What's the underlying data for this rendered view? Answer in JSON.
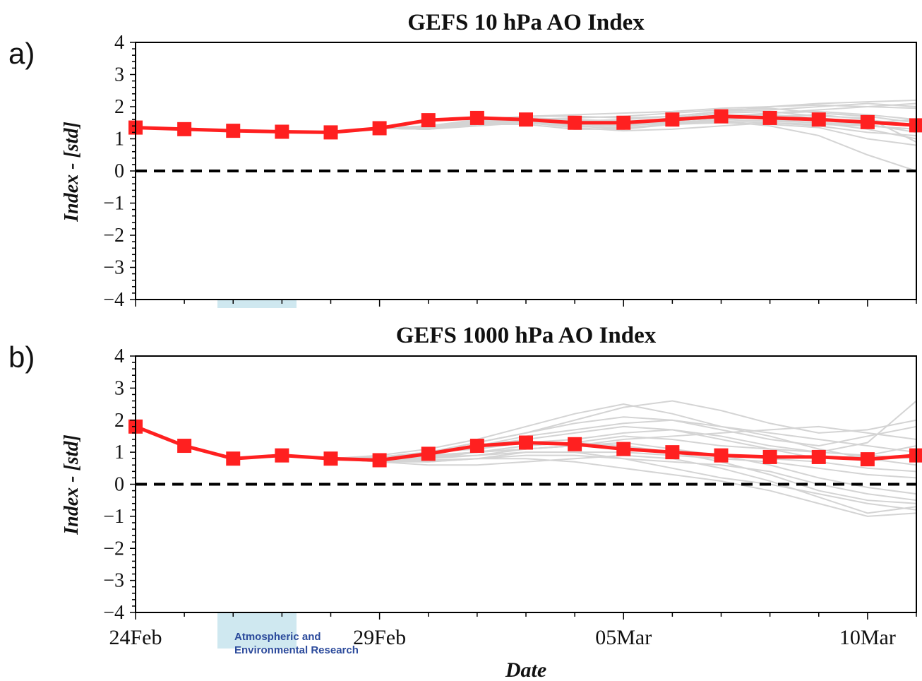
{
  "chart_data": [
    {
      "type": "line",
      "panel_label": "a)",
      "title": "GEFS 10 hPa AO Index",
      "ylabel": "Index - [std]",
      "xlabel": "",
      "ylim": [
        -4,
        4
      ],
      "yticks": [
        4,
        3,
        2,
        1,
        0,
        -1,
        -2,
        -3,
        -4
      ],
      "x_range_days": [
        0,
        16
      ],
      "zero_line": "dashed black",
      "grid": false,
      "legend": "none",
      "colors": {
        "mean": "#ff2020",
        "members": "#d4d4d4",
        "zero": "#000000"
      },
      "series": [
        {
          "role": "ensemble-mean",
          "x": [
            "24Feb",
            "25Feb",
            "26Feb",
            "27Feb",
            "28Feb",
            "29Feb",
            "01Mar",
            "02Mar",
            "03Mar",
            "04Mar",
            "05Mar",
            "06Mar",
            "07Mar",
            "08Mar",
            "09Mar",
            "10Mar",
            "11Mar"
          ],
          "values": [
            1.35,
            1.3,
            1.25,
            1.22,
            1.2,
            1.33,
            1.58,
            1.65,
            1.6,
            1.5,
            1.5,
            1.6,
            1.7,
            1.65,
            1.6,
            1.52,
            1.42
          ]
        }
      ],
      "members_start_day": 6,
      "members": [
        [
          1.4,
          1.5,
          1.55,
          1.45,
          1.4,
          1.5,
          1.6,
          1.8,
          1.9,
          2.0,
          2.1
        ],
        [
          1.3,
          1.45,
          1.6,
          1.55,
          1.6,
          1.7,
          1.85,
          2.0,
          2.1,
          2.15,
          2.2
        ],
        [
          1.35,
          1.5,
          1.5,
          1.35,
          1.25,
          1.3,
          1.4,
          1.5,
          1.4,
          1.2,
          1.1
        ],
        [
          1.3,
          1.4,
          1.5,
          1.4,
          1.3,
          1.5,
          1.6,
          1.55,
          1.5,
          1.3,
          1.0
        ],
        [
          1.4,
          1.55,
          1.7,
          1.75,
          1.8,
          1.85,
          1.95,
          2.0,
          2.05,
          2.0,
          1.95
        ],
        [
          1.35,
          1.5,
          1.6,
          1.5,
          1.45,
          1.55,
          1.7,
          1.8,
          1.85,
          1.75,
          1.6
        ],
        [
          1.3,
          1.45,
          1.45,
          1.3,
          1.3,
          1.45,
          1.55,
          1.4,
          1.1,
          0.5,
          0.0
        ],
        [
          1.35,
          1.55,
          1.65,
          1.6,
          1.55,
          1.6,
          1.75,
          1.7,
          1.6,
          1.4,
          1.3
        ],
        [
          1.3,
          1.5,
          1.55,
          1.4,
          1.35,
          1.45,
          1.5,
          1.45,
          1.35,
          1.0,
          0.8
        ],
        [
          1.35,
          1.5,
          1.6,
          1.65,
          1.7,
          1.8,
          1.9,
          1.95,
          1.8,
          1.7,
          1.5
        ],
        [
          1.4,
          1.6,
          1.7,
          1.7,
          1.65,
          1.7,
          1.85,
          1.9,
          2.0,
          2.1,
          2.0
        ],
        [
          1.3,
          1.45,
          1.5,
          1.45,
          1.5,
          1.6,
          1.7,
          1.6,
          1.5,
          1.45,
          1.2
        ],
        [
          1.35,
          1.55,
          1.55,
          1.45,
          1.4,
          1.55,
          1.65,
          1.75,
          1.65,
          1.5,
          1.6
        ],
        [
          1.3,
          1.5,
          1.6,
          1.55,
          1.45,
          1.5,
          1.6,
          1.7,
          1.75,
          1.6,
          1.4
        ],
        [
          1.4,
          1.55,
          1.65,
          1.55,
          1.5,
          1.65,
          1.8,
          1.85,
          1.7,
          1.65,
          0.9
        ],
        [
          1.35,
          1.5,
          1.55,
          1.5,
          1.45,
          1.5,
          1.55,
          1.5,
          1.45,
          1.4,
          1.3
        ]
      ]
    },
    {
      "type": "line",
      "panel_label": "b)",
      "title": "GEFS 1000 hPa AO Index",
      "ylabel": "Index - [std]",
      "xlabel": "Date",
      "ylim": [
        -4,
        4
      ],
      "yticks": [
        4,
        3,
        2,
        1,
        0,
        -1,
        -2,
        -3,
        -4
      ],
      "xtick_labels": [
        "24Feb",
        "29Feb",
        "05Mar",
        "10Mar"
      ],
      "x_range_days": [
        0,
        16
      ],
      "zero_line": "dashed black",
      "grid": false,
      "legend": "none",
      "colors": {
        "mean": "#ff2020",
        "members": "#d4d4d4",
        "zero": "#000000"
      },
      "series": [
        {
          "role": "ensemble-mean",
          "x": [
            "24Feb",
            "25Feb",
            "26Feb",
            "27Feb",
            "28Feb",
            "29Feb",
            "01Mar",
            "02Mar",
            "03Mar",
            "04Mar",
            "05Mar",
            "06Mar",
            "07Mar",
            "08Mar",
            "09Mar",
            "10Mar",
            "11Mar"
          ],
          "values": [
            1.8,
            1.2,
            0.8,
            0.9,
            0.8,
            0.75,
            0.95,
            1.2,
            1.3,
            1.25,
            1.1,
            1.0,
            0.9,
            0.85,
            0.85,
            0.78,
            0.9
          ]
        }
      ],
      "members_start_day": 4,
      "members": [
        [
          0.8,
          0.9,
          1.1,
          1.4,
          1.8,
          2.2,
          2.5,
          2.2,
          1.8,
          1.6,
          1.4,
          1.2,
          1.0
        ],
        [
          0.8,
          0.85,
          1.0,
          1.3,
          1.6,
          2.0,
          2.4,
          2.6,
          2.3,
          1.9,
          1.6,
          1.7,
          2.0
        ],
        [
          0.8,
          0.7,
          0.7,
          0.8,
          1.0,
          1.0,
          0.8,
          0.5,
          0.2,
          0.0,
          -0.3,
          -0.6,
          -0.8
        ],
        [
          0.8,
          0.75,
          0.8,
          0.9,
          1.1,
          1.2,
          1.3,
          1.1,
          0.9,
          0.6,
          0.2,
          -0.1,
          -0.3
        ],
        [
          0.8,
          0.8,
          0.9,
          1.2,
          1.5,
          1.7,
          1.9,
          2.0,
          1.8,
          1.5,
          1.1,
          0.8,
          0.6
        ],
        [
          0.8,
          0.7,
          0.6,
          0.6,
          0.7,
          0.8,
          0.9,
          0.8,
          0.5,
          0.1,
          -0.4,
          -0.9,
          -0.7
        ],
        [
          0.8,
          0.85,
          1.0,
          1.1,
          1.3,
          1.4,
          1.6,
          1.7,
          1.5,
          1.2,
          1.0,
          1.3,
          2.6
        ],
        [
          0.8,
          0.75,
          0.7,
          0.8,
          0.9,
          0.9,
          0.8,
          0.7,
          0.6,
          0.4,
          0.0,
          -0.3,
          -0.5
        ],
        [
          0.8,
          0.8,
          0.95,
          1.2,
          1.4,
          1.6,
          1.8,
          1.7,
          1.4,
          1.1,
          0.8,
          0.9,
          1.2
        ],
        [
          0.8,
          0.7,
          0.8,
          1.0,
          1.2,
          1.3,
          1.2,
          1.0,
          0.7,
          0.3,
          -0.2,
          -0.5,
          -0.6
        ],
        [
          0.8,
          0.8,
          0.9,
          1.0,
          1.1,
          1.2,
          1.4,
          1.5,
          1.6,
          1.7,
          1.8,
          1.6,
          1.4
        ],
        [
          0.8,
          0.75,
          0.85,
          0.9,
          1.0,
          1.0,
          1.0,
          0.9,
          0.8,
          0.7,
          0.5,
          0.3,
          0.2
        ],
        [
          0.8,
          0.8,
          1.0,
          1.3,
          1.6,
          1.9,
          2.1,
          2.0,
          1.7,
          1.4,
          1.2,
          1.5,
          1.8
        ],
        [
          0.8,
          0.7,
          0.75,
          0.8,
          0.8,
          0.7,
          0.5,
          0.3,
          0.1,
          -0.2,
          -0.6,
          -1.0,
          -0.9
        ],
        [
          0.8,
          0.8,
          0.9,
          1.0,
          1.2,
          1.3,
          1.5,
          1.4,
          1.2,
          1.1,
          1.0,
          0.9,
          0.8
        ],
        [
          0.8,
          0.75,
          0.85,
          1.0,
          1.1,
          1.2,
          1.1,
          1.0,
          0.9,
          0.8,
          0.7,
          0.5,
          0.4
        ]
      ]
    }
  ],
  "logo": {
    "line1": "Atmospheric and",
    "line2": "Environmental Research"
  }
}
